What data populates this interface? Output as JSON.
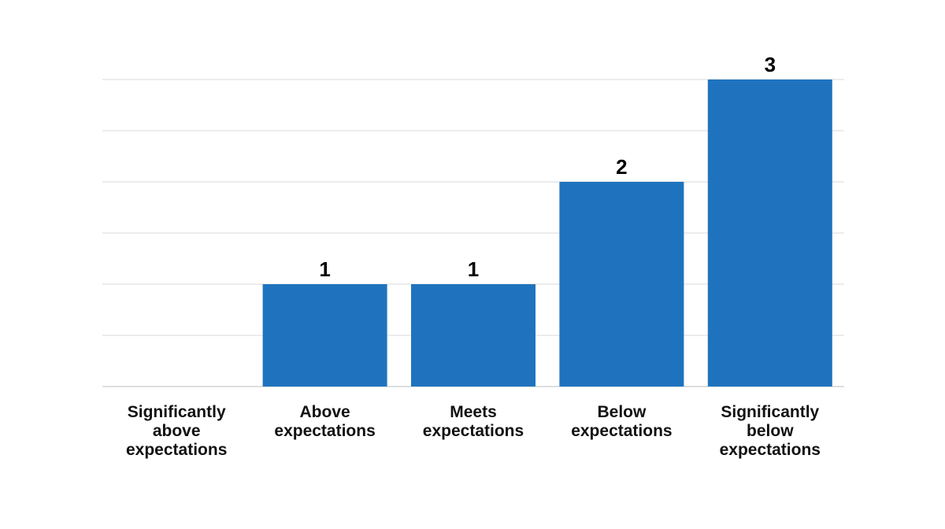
{
  "chart_data": {
    "type": "bar",
    "categories": [
      [
        "Significantly",
        "above",
        "expectations"
      ],
      [
        "Above",
        "expectations"
      ],
      [
        "Meets",
        "expectations"
      ],
      [
        "Below",
        "expectations"
      ],
      [
        "Significantly",
        "below",
        "expectations"
      ]
    ],
    "values": [
      0,
      1,
      1,
      2,
      3
    ],
    "data_labels": [
      "",
      "1",
      "1",
      "2",
      "3"
    ],
    "ylim": [
      0,
      3
    ],
    "gridline_step": 0.5,
    "grid": true,
    "legend": "none",
    "title": "",
    "xlabel": "",
    "ylabel": ""
  },
  "colors": {
    "bar": "#1f73be",
    "grid": "#d9d9d9",
    "axis": "#bfbfbf",
    "text": "#111111"
  }
}
